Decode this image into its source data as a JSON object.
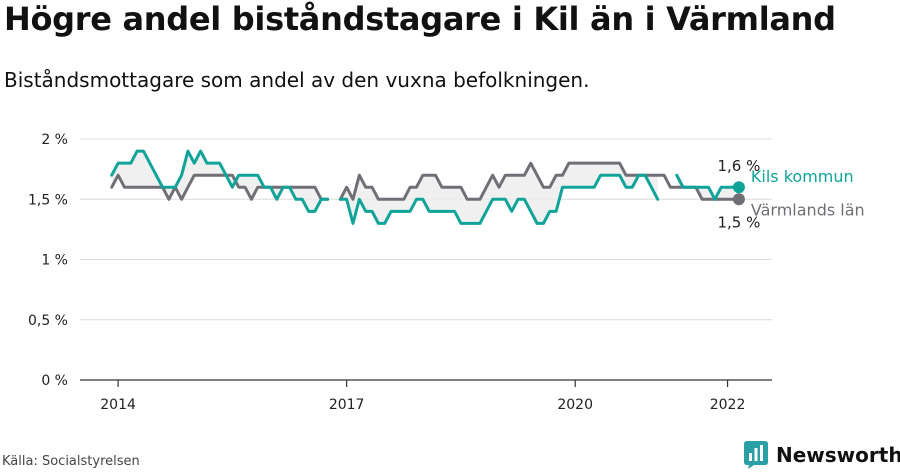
{
  "header": {
    "title": "Högre andel biståndstagare i Kil än i Värmland",
    "subtitle": "Biståndsmottagare som andel av den vuxna befolkningen."
  },
  "footer": {
    "source": "Källa: Socialstyrelsen",
    "brand": "Newsworthy",
    "brand_icon": "bar-chart-logo-icon",
    "brand_color": "#2a9fa4"
  },
  "chart_data": {
    "type": "line",
    "x": [
      "2013-12",
      "2014-01",
      "2014-02",
      "2014-03",
      "2014-04",
      "2014-05",
      "2014-06",
      "2014-07",
      "2014-08",
      "2014-09",
      "2014-10",
      "2014-11",
      "2014-12",
      "2015-01",
      "2015-02",
      "2015-03",
      "2015-04",
      "2015-05",
      "2015-06",
      "2015-07",
      "2015-08",
      "2015-09",
      "2015-10",
      "2015-11",
      "2015-12",
      "2016-01",
      "2016-02",
      "2016-03",
      "2016-04",
      "2016-05",
      "2016-06",
      "2016-07",
      "2016-08",
      "2016-09",
      "2016-10",
      "2016-11",
      "2016-12",
      "2017-01",
      "2017-02",
      "2017-03",
      "2017-04",
      "2017-05",
      "2017-06",
      "2017-07",
      "2017-08",
      "2017-09",
      "2017-10",
      "2017-11",
      "2017-12",
      "2018-01",
      "2018-02",
      "2018-03",
      "2018-04",
      "2018-05",
      "2018-06",
      "2018-07",
      "2018-08",
      "2018-09",
      "2018-10",
      "2018-11",
      "2018-12",
      "2019-01",
      "2019-02",
      "2019-03",
      "2019-04",
      "2019-05",
      "2019-06",
      "2019-07",
      "2019-08",
      "2019-09",
      "2019-10",
      "2019-11",
      "2019-12",
      "2020-01",
      "2020-02",
      "2020-03",
      "2020-04",
      "2020-05",
      "2020-06",
      "2020-07",
      "2020-08",
      "2020-09",
      "2020-10",
      "2020-11",
      "2020-12",
      "2021-01",
      "2021-02",
      "2021-03",
      "2021-04",
      "2021-05",
      "2021-06",
      "2021-07",
      "2021-08",
      "2021-09",
      "2021-10",
      "2021-11",
      "2021-12",
      "2022-01",
      "2022-02"
    ],
    "series": [
      {
        "name": "Kils kommun",
        "color": "#10a39a",
        "end_label": "1,6 %",
        "values": [
          1.7,
          1.8,
          1.8,
          1.8,
          1.9,
          1.9,
          1.8,
          1.7,
          1.6,
          1.6,
          1.6,
          1.7,
          1.9,
          1.8,
          1.9,
          1.8,
          1.8,
          1.8,
          1.7,
          1.6,
          1.7,
          1.7,
          1.7,
          1.7,
          1.6,
          1.6,
          1.5,
          1.6,
          1.6,
          1.5,
          1.5,
          1.4,
          1.4,
          1.5,
          1.5,
          null,
          1.5,
          1.5,
          1.3,
          1.5,
          1.4,
          1.4,
          1.3,
          1.3,
          1.4,
          1.4,
          1.4,
          1.4,
          1.5,
          1.5,
          1.4,
          1.4,
          1.4,
          1.4,
          1.4,
          1.3,
          1.3,
          1.3,
          1.3,
          1.4,
          1.5,
          1.5,
          1.5,
          1.4,
          1.5,
          1.5,
          1.4,
          1.3,
          1.3,
          1.4,
          1.4,
          1.6,
          1.6,
          1.6,
          1.6,
          1.6,
          1.6,
          1.7,
          1.7,
          1.7,
          1.7,
          1.6,
          1.6,
          1.7,
          1.7,
          1.6,
          1.5,
          null,
          null,
          1.7,
          1.6,
          1.6,
          1.6,
          1.6,
          1.6,
          1.5,
          1.6,
          1.6,
          1.6
        ]
      },
      {
        "name": "Värmlands län",
        "color": "#6f6f75",
        "end_label": "1,5 %",
        "values": [
          1.6,
          1.7,
          1.6,
          1.6,
          1.6,
          1.6,
          1.6,
          1.6,
          1.6,
          1.5,
          1.6,
          1.5,
          1.6,
          1.7,
          1.7,
          1.7,
          1.7,
          1.7,
          1.7,
          1.7,
          1.6,
          1.6,
          1.5,
          1.6,
          1.6,
          1.6,
          1.6,
          1.6,
          1.6,
          1.6,
          1.6,
          1.6,
          1.6,
          1.5,
          1.5,
          null,
          1.5,
          1.6,
          1.5,
          1.7,
          1.6,
          1.6,
          1.5,
          1.5,
          1.5,
          1.5,
          1.5,
          1.6,
          1.6,
          1.7,
          1.7,
          1.7,
          1.6,
          1.6,
          1.6,
          1.6,
          1.5,
          1.5,
          1.5,
          1.6,
          1.7,
          1.6,
          1.7,
          1.7,
          1.7,
          1.7,
          1.8,
          1.7,
          1.6,
          1.6,
          1.7,
          1.7,
          1.8,
          1.8,
          1.8,
          1.8,
          1.8,
          1.8,
          1.8,
          1.8,
          1.8,
          1.7,
          1.7,
          1.7,
          1.7,
          1.7,
          1.7,
          1.7,
          1.6,
          1.6,
          1.6,
          1.6,
          1.6,
          1.5,
          1.5,
          1.5,
          1.5,
          1.5,
          1.5
        ]
      }
    ],
    "yticks": [
      0,
      0.5,
      1,
      1.5,
      2
    ],
    "ytick_labels": [
      "0 %",
      "0,5 %",
      "1 %",
      "1,5 %",
      "2 %"
    ],
    "xtick_labels": [
      "2014",
      "2017",
      "2020",
      "2022"
    ],
    "ylim": [
      0,
      2.1
    ],
    "xlim": [
      "2013-07",
      "2022-08"
    ],
    "grid": true,
    "legend": "end-of-line labels, right"
  }
}
